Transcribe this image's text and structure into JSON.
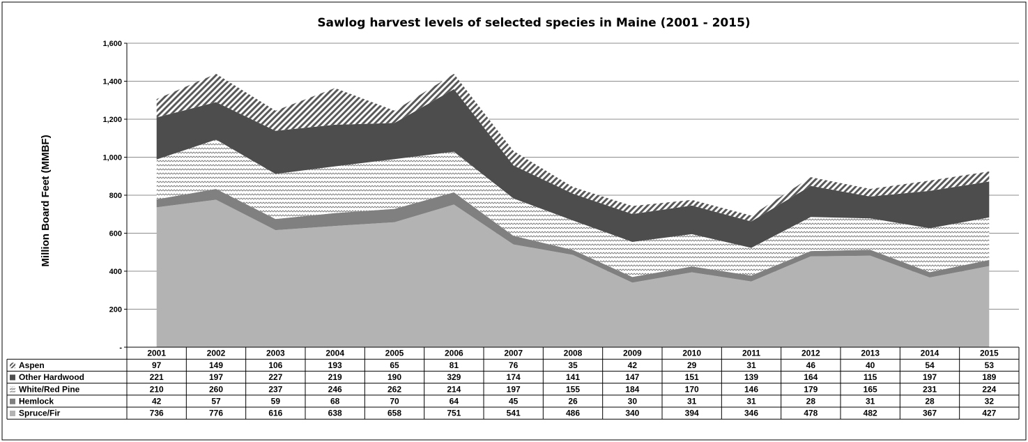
{
  "chart_data": {
    "type": "area",
    "stacked": true,
    "title": "Sawlog harvest levels of selected species in Maine (2001 - 2015)",
    "ylabel": "Million Board Feet (MMBF)",
    "xlabel": "",
    "ylim": [
      0,
      1600
    ],
    "yticks": [
      0,
      200,
      400,
      600,
      800,
      1000,
      1200,
      1400,
      1600
    ],
    "ytick_labels": [
      "-",
      "200",
      "400",
      "600",
      "800",
      "1,000",
      "1,200",
      "1,400",
      "1,600"
    ],
    "grid": true,
    "legend": "data-table-below",
    "categories": [
      "2001",
      "2002",
      "2003",
      "2004",
      "2005",
      "2006",
      "2007",
      "2008",
      "2009",
      "2010",
      "2011",
      "2012",
      "2013",
      "2014",
      "2015"
    ],
    "series": [
      {
        "name": "Spruce/Fir",
        "values": [
          736,
          776,
          616,
          638,
          658,
          751,
          541,
          486,
          340,
          394,
          346,
          478,
          482,
          367,
          427
        ],
        "color": "#b3b3b3",
        "pattern": "solid"
      },
      {
        "name": "Hemlock",
        "values": [
          42,
          57,
          59,
          68,
          70,
          64,
          45,
          26,
          30,
          31,
          31,
          28,
          31,
          28,
          32
        ],
        "color": "#808080",
        "pattern": "solid"
      },
      {
        "name": "White/Red Pine",
        "values": [
          210,
          260,
          237,
          246,
          262,
          214,
          197,
          155,
          184,
          170,
          146,
          179,
          165,
          231,
          224
        ],
        "color": "#777777",
        "pattern": "zigzag"
      },
      {
        "name": "Other Hardwood",
        "values": [
          221,
          197,
          227,
          219,
          190,
          329,
          174,
          141,
          147,
          151,
          139,
          164,
          115,
          197,
          189
        ],
        "color": "#4d4d4d",
        "pattern": "solid"
      },
      {
        "name": "Aspen",
        "values": [
          97,
          149,
          106,
          193,
          65,
          81,
          76,
          35,
          42,
          29,
          31,
          46,
          40,
          54,
          53
        ],
        "color": "#595959",
        "pattern": "diagonal"
      }
    ],
    "table_row_order": [
      "Aspen",
      "Other Hardwood",
      "White/Red Pine",
      "Hemlock",
      "Spruce/Fir"
    ]
  }
}
